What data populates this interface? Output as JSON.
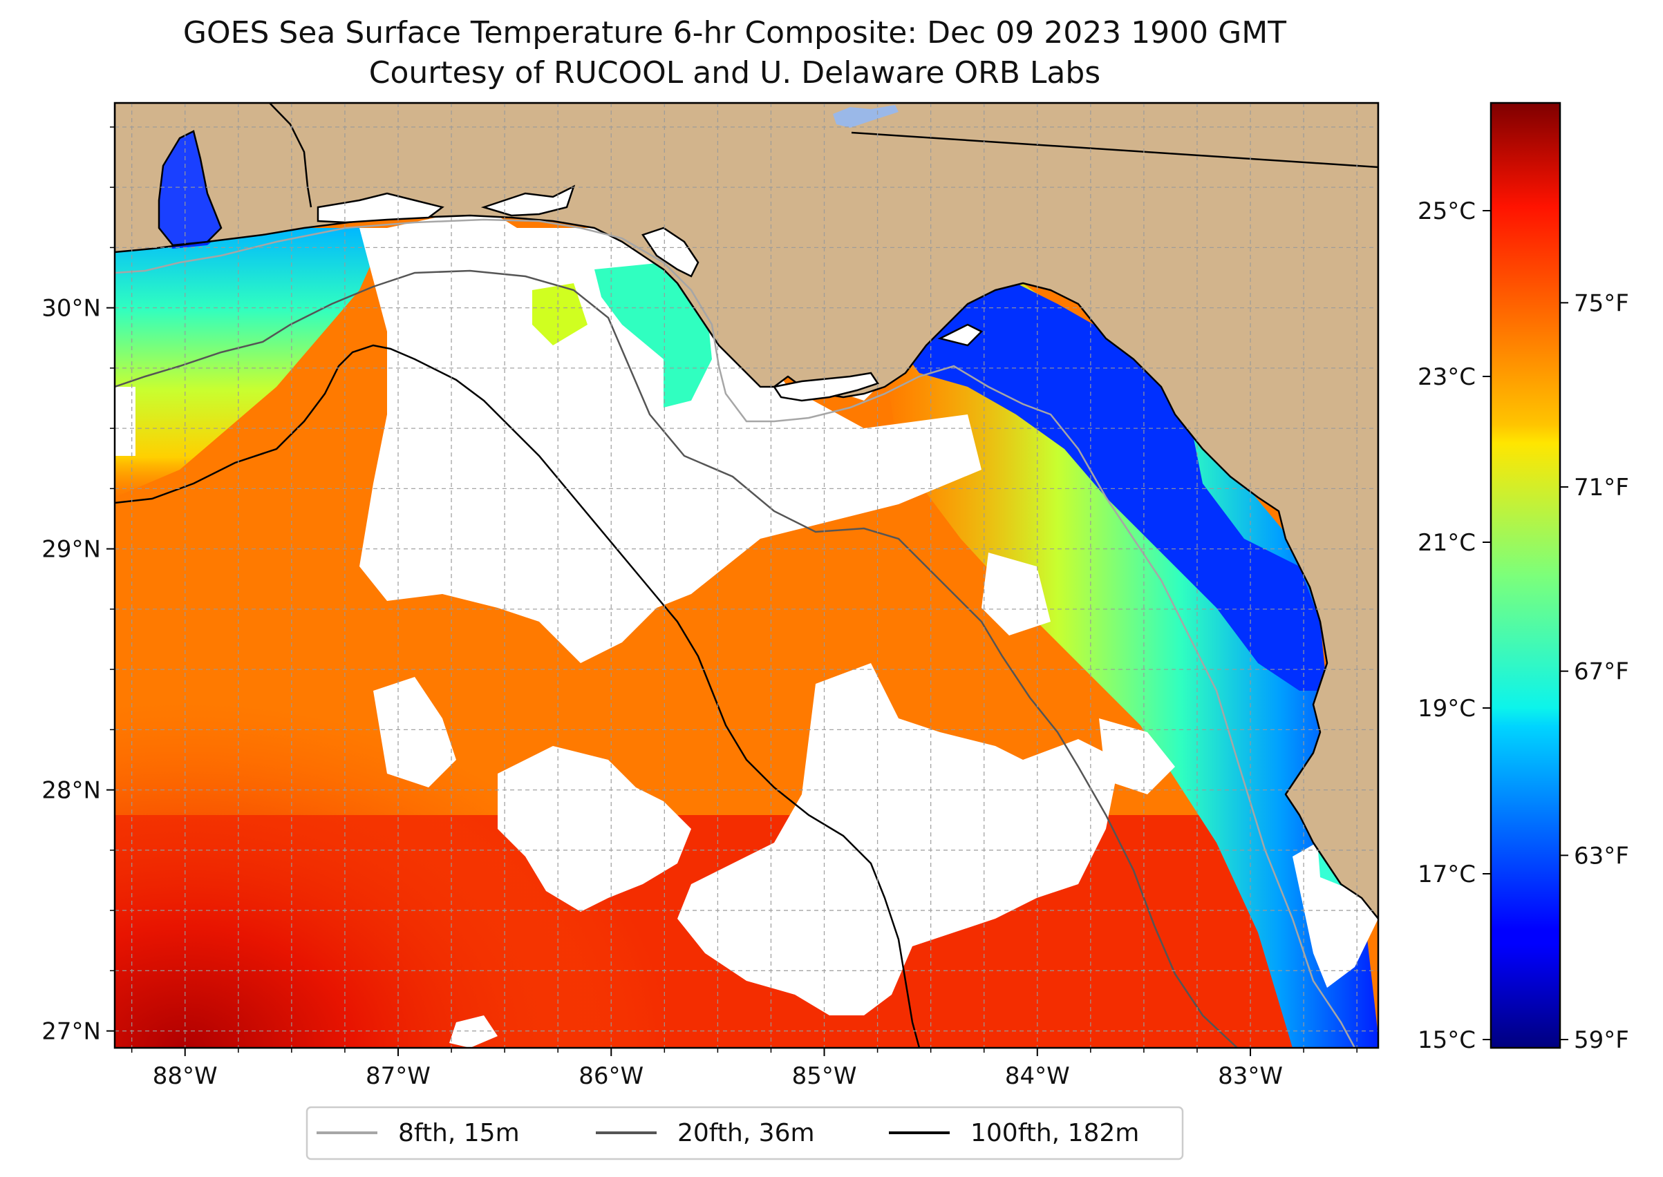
{
  "title": {
    "line1": "GOES Sea Surface Temperature 6-hr Composite: Dec 09 2023 1900 GMT",
    "line2": "Courtesy of RUCOOL and U. Delaware ORB Labs"
  },
  "map": {
    "lon_range": [
      -88.33,
      -82.4
    ],
    "lat_range": [
      26.93,
      30.85
    ],
    "lon_ticks": [
      {
        "value": -88,
        "label": "88°W"
      },
      {
        "value": -87,
        "label": "87°W"
      },
      {
        "value": -86,
        "label": "86°W"
      },
      {
        "value": -85,
        "label": "85°W"
      },
      {
        "value": -84,
        "label": "84°W"
      },
      {
        "value": -83,
        "label": "83°W"
      }
    ],
    "lat_ticks": [
      {
        "value": 30,
        "label": "30°N"
      },
      {
        "value": 29,
        "label": "29°N"
      },
      {
        "value": 28,
        "label": "28°N"
      },
      {
        "value": 27,
        "label": "27°N"
      }
    ],
    "grid": true,
    "colors": {
      "land": "#D2B48C",
      "no_data": "#ffffff",
      "contour_15m": "#a6a6a6",
      "contour_36m": "#555555",
      "contour_182m": "#000000"
    }
  },
  "colorbar": {
    "colormap": "jet",
    "celsius_range": [
      14.9,
      26.3
    ],
    "celsius_ticks": [
      {
        "value": 25,
        "label": "25°C"
      },
      {
        "value": 23,
        "label": "23°C"
      },
      {
        "value": 21,
        "label": "21°C"
      },
      {
        "value": 19,
        "label": "19°C"
      },
      {
        "value": 17,
        "label": "17°C"
      },
      {
        "value": 15,
        "label": "15°C"
      }
    ],
    "fahrenheit_ticks": [
      {
        "value": 75,
        "label": "75°F"
      },
      {
        "value": 71,
        "label": "71°F"
      },
      {
        "value": 67,
        "label": "67°F"
      },
      {
        "value": 63,
        "label": "63°F"
      },
      {
        "value": 59,
        "label": "59°F"
      }
    ]
  },
  "legend": {
    "placement": "bottom-center",
    "entries": [
      {
        "label": "8fth, 15m",
        "color": "#a6a6a6"
      },
      {
        "label": "20fth, 36m",
        "color": "#555555"
      },
      {
        "label": "100fth, 182m",
        "color": "#000000"
      }
    ]
  }
}
